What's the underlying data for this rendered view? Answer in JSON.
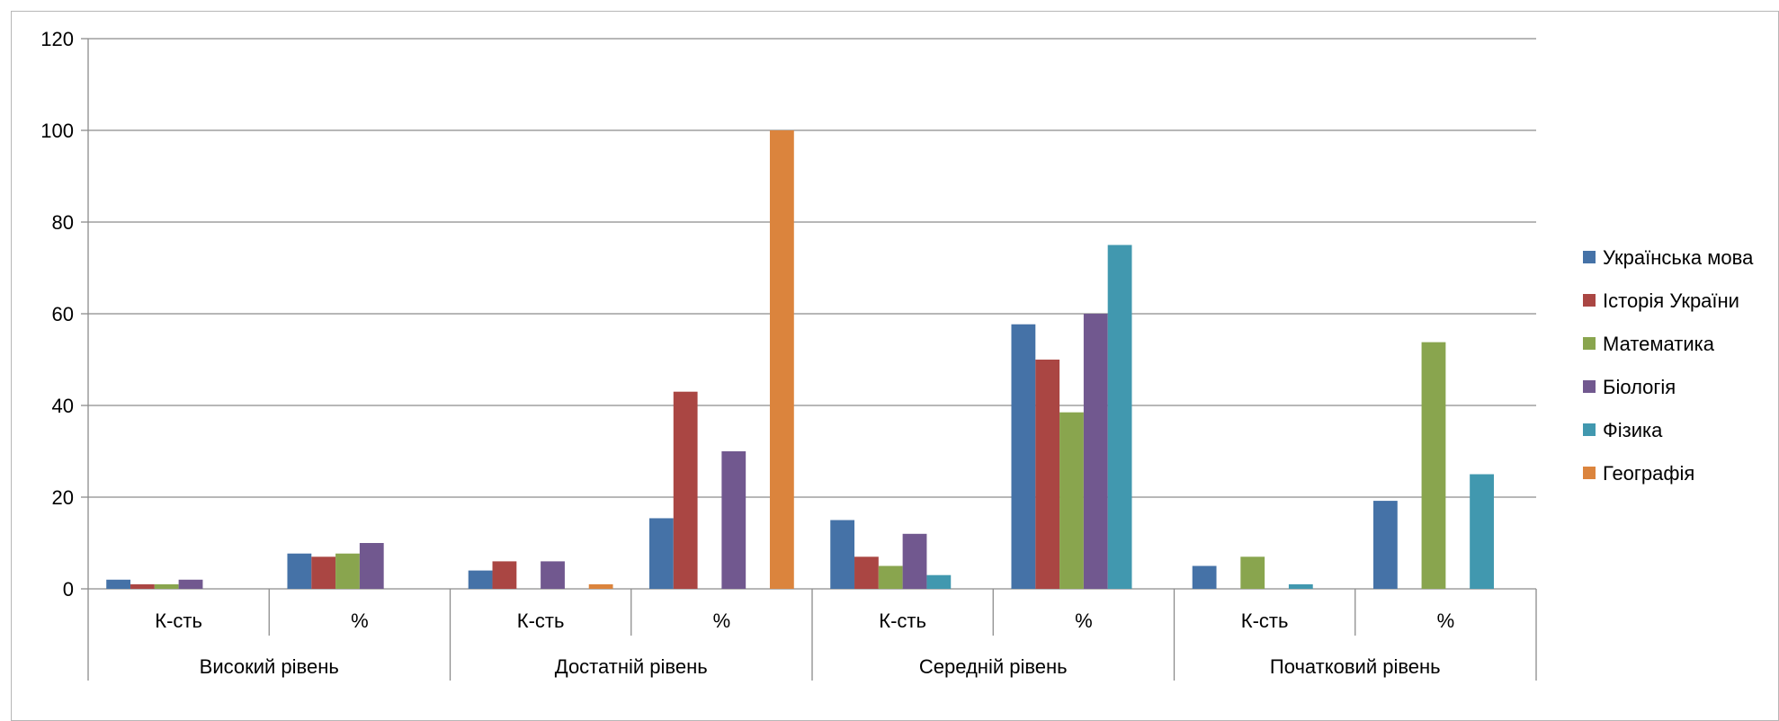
{
  "chart_data": {
    "type": "bar",
    "groups": [
      {
        "name": "Високий рівень",
        "categories": [
          "К-сть",
          "%"
        ]
      },
      {
        "name": "Достатній рівень",
        "categories": [
          "К-сть",
          "%"
        ]
      },
      {
        "name": "Середній рівень",
        "categories": [
          "К-сть",
          "%"
        ]
      },
      {
        "name": "Початковий рівень",
        "categories": [
          "К-сть",
          "%"
        ]
      }
    ],
    "categories": [
      "К-сть",
      "%",
      "К-сть",
      "%",
      "К-сть",
      "%",
      "К-сть",
      "%"
    ],
    "series": [
      {
        "name": "Українська мова",
        "color": "#4572A7",
        "values": [
          2,
          7.7,
          4,
          15.4,
          15,
          57.7,
          5,
          19.2
        ]
      },
      {
        "name": "Історія України",
        "color": "#AA4643",
        "values": [
          1,
          7,
          6,
          43,
          7,
          50,
          null,
          null
        ]
      },
      {
        "name": "Математика",
        "color": "#89A54E",
        "values": [
          1,
          7.7,
          null,
          null,
          5,
          38.5,
          7,
          53.8
        ]
      },
      {
        "name": "Біологія",
        "color": "#71588F",
        "values": [
          2,
          10,
          6,
          30,
          12,
          60,
          null,
          null
        ]
      },
      {
        "name": "Фізика",
        "color": "#4198AF",
        "values": [
          null,
          null,
          null,
          null,
          3,
          75,
          1,
          25
        ]
      },
      {
        "name": "Географія",
        "color": "#DB843D",
        "values": [
          null,
          null,
          1,
          100,
          null,
          null,
          null,
          null
        ]
      }
    ],
    "ylim": [
      0,
      120
    ],
    "yticks": [
      0,
      20,
      40,
      60,
      80,
      100,
      120
    ],
    "grid": true,
    "legend_position": "right"
  }
}
